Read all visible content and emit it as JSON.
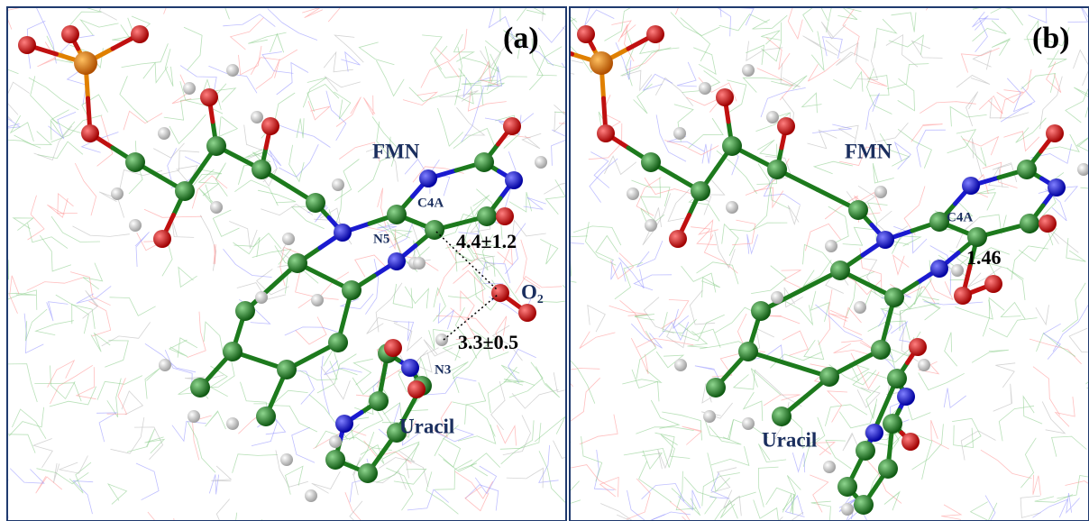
{
  "panels": [
    {
      "label": "(a)",
      "annotations": {
        "fmn": "FMN",
        "c4a": "C4A",
        "n5": "N5",
        "distance_c4a_o2": "4.4±1.2",
        "o2": "O₂",
        "distance_n3_o2": "3.3±0.5",
        "n3": "N3",
        "uracil": "Uracil"
      }
    },
    {
      "label": "(b)",
      "annotations": {
        "fmn": "FMN",
        "c4a": "C4A",
        "bond_length": "1.46",
        "uracil": "Uracil"
      }
    }
  ]
}
